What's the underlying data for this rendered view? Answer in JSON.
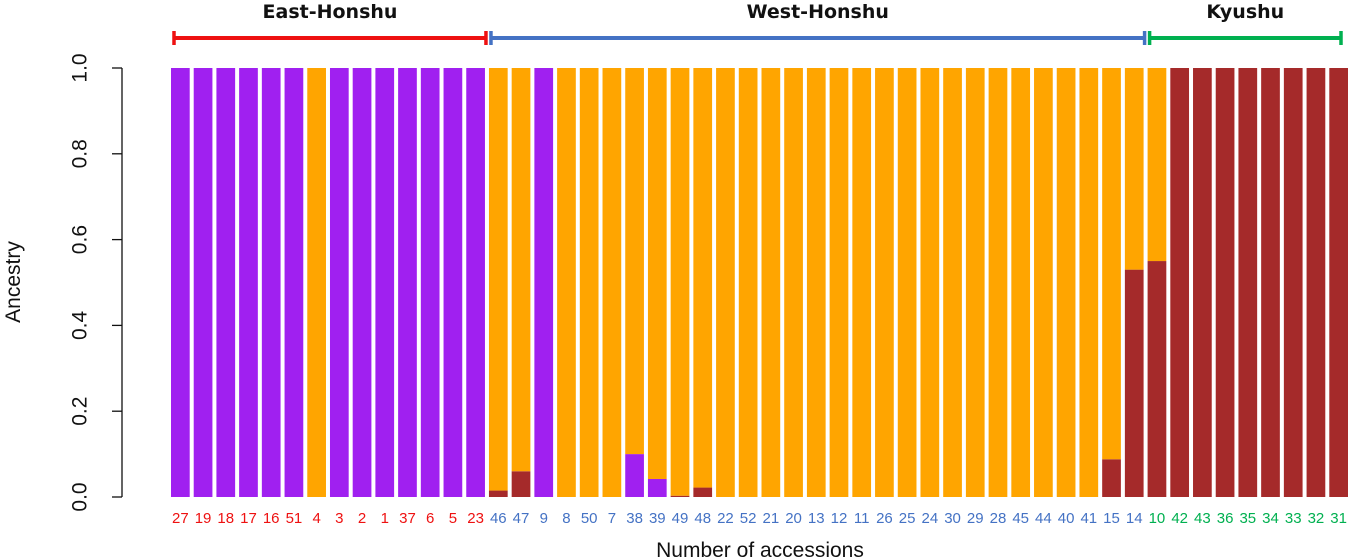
{
  "chart_data": {
    "type": "bar",
    "stacked": true,
    "xlabel": "Number of accessions",
    "ylabel": "Ancestry",
    "ylim": [
      0,
      1
    ],
    "yticks": [
      "0.0",
      "0.2",
      "0.4",
      "0.6",
      "0.8",
      "1.0"
    ],
    "colors": {
      "purple": "#a020f0",
      "orange": "#ffa500",
      "darkred": "#a52a2a"
    },
    "categories": [
      "27",
      "19",
      "18",
      "17",
      "16",
      "51",
      "4",
      "3",
      "2",
      "1",
      "37",
      "6",
      "5",
      "23",
      "46",
      "47",
      "9",
      "8",
      "50",
      "7",
      "38",
      "39",
      "49",
      "48",
      "22",
      "52",
      "21",
      "20",
      "13",
      "12",
      "11",
      "26",
      "25",
      "24",
      "30",
      "29",
      "28",
      "45",
      "44",
      "40",
      "41",
      "15",
      "14",
      "10",
      "42",
      "43",
      "36",
      "35",
      "34",
      "33",
      "32",
      "31"
    ],
    "label_groups": [
      "East-Honshu",
      "East-Honshu",
      "East-Honshu",
      "East-Honshu",
      "East-Honshu",
      "East-Honshu",
      "East-Honshu",
      "East-Honshu",
      "East-Honshu",
      "East-Honshu",
      "East-Honshu",
      "East-Honshu",
      "East-Honshu",
      "East-Honshu",
      "West-Honshu",
      "West-Honshu",
      "West-Honshu",
      "West-Honshu",
      "West-Honshu",
      "West-Honshu",
      "West-Honshu",
      "West-Honshu",
      "West-Honshu",
      "West-Honshu",
      "West-Honshu",
      "West-Honshu",
      "West-Honshu",
      "West-Honshu",
      "West-Honshu",
      "West-Honshu",
      "West-Honshu",
      "West-Honshu",
      "West-Honshu",
      "West-Honshu",
      "West-Honshu",
      "West-Honshu",
      "West-Honshu",
      "West-Honshu",
      "West-Honshu",
      "West-Honshu",
      "West-Honshu",
      "West-Honshu",
      "West-Honshu",
      "Kyushu",
      "Kyushu",
      "Kyushu",
      "Kyushu",
      "Kyushu",
      "Kyushu",
      "Kyushu",
      "Kyushu",
      "Kyushu"
    ],
    "series": [
      {
        "color": "darkred",
        "values": [
          0,
          0,
          0,
          0,
          0,
          0,
          0,
          0,
          0,
          0,
          0,
          0,
          0,
          0,
          0.015,
          0.06,
          0,
          0,
          0,
          0,
          0,
          0,
          0.003,
          0.022,
          0,
          0,
          0,
          0,
          0,
          0,
          0,
          0,
          0,
          0,
          0,
          0,
          0,
          0,
          0,
          0,
          0,
          0.088,
          0.53,
          0.55,
          1,
          1,
          1,
          1,
          1,
          1,
          1,
          1
        ]
      },
      {
        "color": "purple",
        "values": [
          1,
          1,
          1,
          1,
          1,
          1,
          0,
          1,
          1,
          1,
          1,
          1,
          1,
          1,
          0,
          0,
          1,
          0,
          0,
          0,
          0.1,
          0.042,
          0,
          0,
          0,
          0,
          0,
          0,
          0,
          0,
          0,
          0,
          0,
          0,
          0,
          0,
          0,
          0,
          0,
          0,
          0,
          0,
          0,
          0,
          0,
          0,
          0,
          0,
          0,
          0,
          0,
          0
        ]
      },
      {
        "color": "orange",
        "values": [
          0,
          0,
          0,
          0,
          0,
          0,
          1,
          0,
          0,
          0,
          0,
          0,
          0,
          0,
          0.985,
          0.94,
          0,
          1,
          1,
          1,
          0.9,
          0.958,
          0.997,
          0.978,
          1,
          1,
          1,
          1,
          1,
          1,
          1,
          1,
          1,
          1,
          1,
          1,
          1,
          1,
          1,
          1,
          1,
          0.912,
          0.47,
          0.45,
          0,
          0,
          0,
          0,
          0,
          0,
          0,
          0
        ]
      }
    ],
    "regions": [
      {
        "name": "East-Honshu",
        "color": "#ee1111",
        "start": 0,
        "end": 13
      },
      {
        "name": "West-Honshu",
        "color": "#4472c4",
        "start": 14,
        "end": 42
      },
      {
        "name": "Kyushu",
        "color": "#00b050",
        "start": 43,
        "end": 51
      }
    ]
  }
}
